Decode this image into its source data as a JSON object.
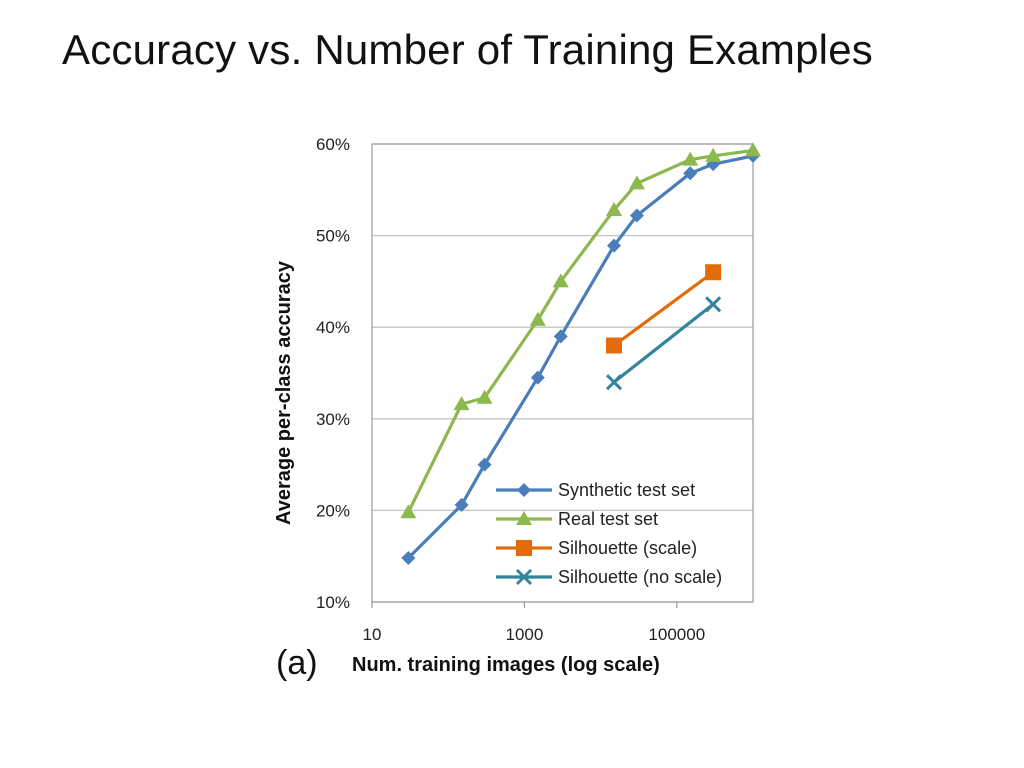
{
  "slide": {
    "title": "Accuracy vs. Number of Training Examples"
  },
  "chart_data": {
    "type": "line",
    "title": "",
    "panel_label": "(a)",
    "xlabel": "Num. training images (log scale)",
    "ylabel": "Average per-class accuracy",
    "x_scale": "log",
    "xlim": [
      10,
      1000000
    ],
    "ylim": [
      10,
      60
    ],
    "x_ticks": [
      {
        "value": 10,
        "label": "10"
      },
      {
        "value": 1000,
        "label": "1000"
      },
      {
        "value": 100000,
        "label": "100000"
      }
    ],
    "y_ticks": [
      {
        "value": 10,
        "label": "10%"
      },
      {
        "value": 20,
        "label": "20%"
      },
      {
        "value": 30,
        "label": "30%"
      },
      {
        "value": 40,
        "label": "40%"
      },
      {
        "value": 50,
        "label": "50%"
      },
      {
        "value": 60,
        "label": "60%"
      }
    ],
    "grid": "horizontal",
    "legend_position": "bottom-right",
    "series": [
      {
        "name": "Synthetic test set",
        "color": "#4a7ebb",
        "marker": "diamond",
        "x": [
          30,
          150,
          300,
          1500,
          3000,
          15000,
          30000,
          150000,
          300000,
          1000000
        ],
        "y": [
          14.8,
          20.6,
          25.0,
          34.5,
          39.0,
          48.9,
          52.2,
          56.8,
          57.8,
          58.7
        ]
      },
      {
        "name": "Real test set",
        "color": "#8cb84d",
        "marker": "triangle",
        "x": [
          30,
          150,
          300,
          1500,
          3000,
          15000,
          30000,
          150000,
          300000,
          1000000
        ],
        "y": [
          19.8,
          31.6,
          32.3,
          40.8,
          45.0,
          52.8,
          55.7,
          58.3,
          58.7,
          59.3
        ]
      },
      {
        "name": "Silhouette (scale)",
        "color": "#e36c0a",
        "marker": "square",
        "x": [
          15000,
          300000
        ],
        "y": [
          38.0,
          46.0
        ]
      },
      {
        "name": "Silhouette (no scale)",
        "color": "#31849b",
        "marker": "x",
        "x": [
          15000,
          300000
        ],
        "y": [
          34.0,
          42.5
        ]
      }
    ]
  }
}
